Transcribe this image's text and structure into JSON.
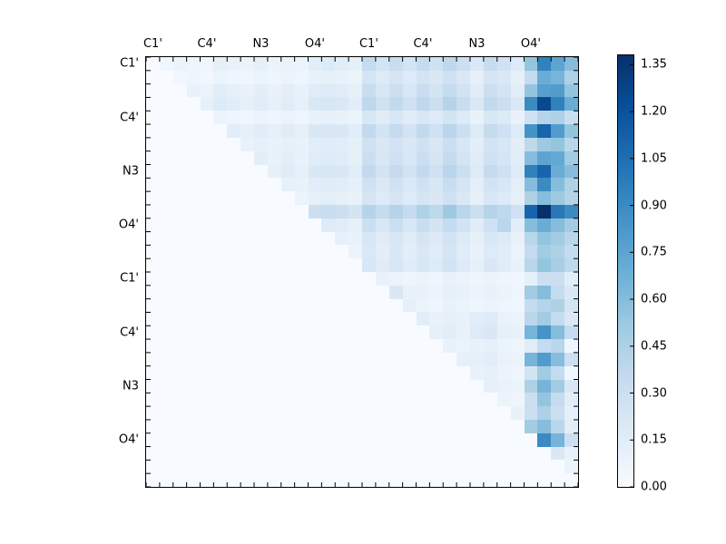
{
  "figure": {
    "background": "#ffffff",
    "axis_color": "#000000"
  },
  "chart_data": {
    "type": "heatmap",
    "title": "",
    "xlabel": "",
    "ylabel": "",
    "n": 32,
    "label_every": 4,
    "x_tick_labels": [
      "C1'",
      "C4'",
      "N3",
      "O4'",
      "C1'",
      "C4'",
      "N3",
      "O4'"
    ],
    "y_tick_labels": [
      "C1'",
      "C4'",
      "N3",
      "O4'",
      "C1'",
      "C4'",
      "N3",
      "O4'"
    ],
    "vmin": 0.0,
    "vmax": 1.38,
    "colormap": "Blues",
    "colormap_stops": [
      {
        "t": 0.0,
        "c": "#f7fbff"
      },
      {
        "t": 0.125,
        "c": "#deebf7"
      },
      {
        "t": 0.25,
        "c": "#c6dbef"
      },
      {
        "t": 0.375,
        "c": "#9ecae1"
      },
      {
        "t": 0.5,
        "c": "#6baed6"
      },
      {
        "t": 0.625,
        "c": "#4292c6"
      },
      {
        "t": 0.75,
        "c": "#2171b5"
      },
      {
        "t": 0.875,
        "c": "#08519c"
      },
      {
        "t": 1.0,
        "c": "#08306b"
      }
    ],
    "colorbar_ticks": [
      {
        "value": 0.0,
        "label": "0.00"
      },
      {
        "value": 0.15,
        "label": "0.15"
      },
      {
        "value": 0.3,
        "label": "0.30"
      },
      {
        "value": 0.45,
        "label": "0.45"
      },
      {
        "value": 0.6,
        "label": "0.60"
      },
      {
        "value": 0.75,
        "label": "0.75"
      },
      {
        "value": 0.9,
        "label": "0.90"
      },
      {
        "value": 1.05,
        "label": "1.05"
      },
      {
        "value": 1.2,
        "label": "1.20"
      },
      {
        "value": 1.35,
        "label": "1.35"
      }
    ],
    "matrix": [
      [
        0.0,
        0.05,
        0.08,
        0.06,
        0.05,
        0.12,
        0.1,
        0.08,
        0.12,
        0.08,
        0.1,
        0.08,
        0.15,
        0.18,
        0.15,
        0.12,
        0.35,
        0.25,
        0.32,
        0.25,
        0.35,
        0.28,
        0.38,
        0.3,
        0.2,
        0.33,
        0.28,
        0.18,
        0.55,
        0.95,
        0.75,
        0.6
      ],
      [
        0.0,
        0.0,
        0.04,
        0.06,
        0.04,
        0.08,
        0.06,
        0.05,
        0.08,
        0.06,
        0.08,
        0.06,
        0.1,
        0.12,
        0.1,
        0.08,
        0.25,
        0.18,
        0.24,
        0.18,
        0.25,
        0.2,
        0.28,
        0.2,
        0.12,
        0.24,
        0.2,
        0.12,
        0.35,
        0.7,
        0.65,
        0.45
      ],
      [
        0.0,
        0.0,
        0.0,
        0.1,
        0.08,
        0.15,
        0.12,
        0.1,
        0.14,
        0.1,
        0.14,
        0.1,
        0.16,
        0.18,
        0.16,
        0.12,
        0.32,
        0.22,
        0.3,
        0.22,
        0.32,
        0.25,
        0.35,
        0.26,
        0.16,
        0.3,
        0.25,
        0.15,
        0.55,
        0.78,
        0.8,
        0.55
      ],
      [
        0.0,
        0.0,
        0.0,
        0.0,
        0.12,
        0.18,
        0.15,
        0.12,
        0.16,
        0.12,
        0.16,
        0.12,
        0.2,
        0.22,
        0.2,
        0.15,
        0.38,
        0.28,
        0.36,
        0.28,
        0.38,
        0.3,
        0.42,
        0.32,
        0.2,
        0.36,
        0.3,
        0.2,
        0.9,
        1.25,
        0.95,
        0.7
      ],
      [
        0.0,
        0.0,
        0.0,
        0.0,
        0.0,
        0.08,
        0.06,
        0.05,
        0.08,
        0.06,
        0.08,
        0.06,
        0.1,
        0.12,
        0.1,
        0.08,
        0.22,
        0.16,
        0.22,
        0.16,
        0.22,
        0.18,
        0.25,
        0.18,
        0.1,
        0.22,
        0.18,
        0.1,
        0.28,
        0.42,
        0.45,
        0.3
      ],
      [
        0.0,
        0.0,
        0.0,
        0.0,
        0.0,
        0.0,
        0.15,
        0.12,
        0.16,
        0.12,
        0.16,
        0.12,
        0.2,
        0.22,
        0.2,
        0.15,
        0.36,
        0.26,
        0.34,
        0.26,
        0.36,
        0.28,
        0.4,
        0.3,
        0.18,
        0.34,
        0.28,
        0.18,
        0.85,
        1.1,
        0.8,
        0.55
      ],
      [
        0.0,
        0.0,
        0.0,
        0.0,
        0.0,
        0.0,
        0.0,
        0.1,
        0.12,
        0.1,
        0.12,
        0.1,
        0.15,
        0.16,
        0.15,
        0.12,
        0.28,
        0.2,
        0.26,
        0.2,
        0.28,
        0.22,
        0.3,
        0.22,
        0.14,
        0.26,
        0.22,
        0.14,
        0.38,
        0.52,
        0.55,
        0.4
      ],
      [
        0.0,
        0.0,
        0.0,
        0.0,
        0.0,
        0.0,
        0.0,
        0.0,
        0.14,
        0.1,
        0.14,
        0.1,
        0.16,
        0.18,
        0.16,
        0.12,
        0.3,
        0.22,
        0.28,
        0.22,
        0.3,
        0.24,
        0.34,
        0.25,
        0.16,
        0.28,
        0.24,
        0.15,
        0.6,
        0.75,
        0.72,
        0.5
      ],
      [
        0.0,
        0.0,
        0.0,
        0.0,
        0.0,
        0.0,
        0.0,
        0.0,
        0.0,
        0.12,
        0.16,
        0.12,
        0.2,
        0.22,
        0.2,
        0.15,
        0.36,
        0.26,
        0.34,
        0.26,
        0.36,
        0.28,
        0.4,
        0.3,
        0.18,
        0.34,
        0.28,
        0.18,
        0.95,
        1.1,
        0.7,
        0.6
      ],
      [
        0.0,
        0.0,
        0.0,
        0.0,
        0.0,
        0.0,
        0.0,
        0.0,
        0.0,
        0.0,
        0.12,
        0.1,
        0.15,
        0.16,
        0.15,
        0.12,
        0.28,
        0.2,
        0.28,
        0.2,
        0.28,
        0.22,
        0.32,
        0.24,
        0.14,
        0.26,
        0.22,
        0.14,
        0.6,
        0.9,
        0.6,
        0.45
      ],
      [
        0.0,
        0.0,
        0.0,
        0.0,
        0.0,
        0.0,
        0.0,
        0.0,
        0.0,
        0.0,
        0.0,
        0.08,
        0.12,
        0.14,
        0.12,
        0.1,
        0.24,
        0.18,
        0.24,
        0.18,
        0.24,
        0.2,
        0.28,
        0.2,
        0.12,
        0.22,
        0.18,
        0.12,
        0.45,
        0.6,
        0.52,
        0.42
      ],
      [
        0.0,
        0.0,
        0.0,
        0.0,
        0.0,
        0.0,
        0.0,
        0.0,
        0.0,
        0.0,
        0.0,
        0.0,
        0.3,
        0.32,
        0.3,
        0.25,
        0.42,
        0.35,
        0.42,
        0.35,
        0.45,
        0.38,
        0.52,
        0.4,
        0.3,
        0.42,
        0.38,
        0.28,
        1.1,
        1.38,
        1.0,
        0.9
      ],
      [
        0.0,
        0.0,
        0.0,
        0.0,
        0.0,
        0.0,
        0.0,
        0.0,
        0.0,
        0.0,
        0.0,
        0.0,
        0.0,
        0.18,
        0.16,
        0.12,
        0.3,
        0.22,
        0.3,
        0.22,
        0.32,
        0.25,
        0.35,
        0.26,
        0.16,
        0.28,
        0.4,
        0.15,
        0.6,
        0.7,
        0.6,
        0.5
      ],
      [
        0.0,
        0.0,
        0.0,
        0.0,
        0.0,
        0.0,
        0.0,
        0.0,
        0.0,
        0.0,
        0.0,
        0.0,
        0.0,
        0.0,
        0.12,
        0.1,
        0.22,
        0.16,
        0.22,
        0.16,
        0.24,
        0.18,
        0.26,
        0.18,
        0.12,
        0.2,
        0.18,
        0.1,
        0.4,
        0.55,
        0.5,
        0.4
      ],
      [
        0.0,
        0.0,
        0.0,
        0.0,
        0.0,
        0.0,
        0.0,
        0.0,
        0.0,
        0.0,
        0.0,
        0.0,
        0.0,
        0.0,
        0.0,
        0.08,
        0.2,
        0.14,
        0.2,
        0.14,
        0.2,
        0.16,
        0.24,
        0.16,
        0.1,
        0.18,
        0.15,
        0.08,
        0.35,
        0.5,
        0.45,
        0.35
      ],
      [
        0.0,
        0.0,
        0.0,
        0.0,
        0.0,
        0.0,
        0.0,
        0.0,
        0.0,
        0.0,
        0.0,
        0.0,
        0.0,
        0.0,
        0.0,
        0.0,
        0.22,
        0.16,
        0.22,
        0.16,
        0.22,
        0.18,
        0.26,
        0.18,
        0.12,
        0.2,
        0.16,
        0.1,
        0.4,
        0.55,
        0.48,
        0.38
      ],
      [
        0.0,
        0.0,
        0.0,
        0.0,
        0.0,
        0.0,
        0.0,
        0.0,
        0.0,
        0.0,
        0.0,
        0.0,
        0.0,
        0.0,
        0.0,
        0.0,
        0.0,
        0.1,
        0.08,
        0.06,
        0.08,
        0.06,
        0.1,
        0.08,
        0.06,
        0.08,
        0.06,
        0.05,
        0.12,
        0.3,
        0.3,
        0.15
      ],
      [
        0.0,
        0.0,
        0.0,
        0.0,
        0.0,
        0.0,
        0.0,
        0.0,
        0.0,
        0.0,
        0.0,
        0.0,
        0.0,
        0.0,
        0.0,
        0.0,
        0.0,
        0.0,
        0.2,
        0.1,
        0.1,
        0.08,
        0.12,
        0.1,
        0.08,
        0.1,
        0.08,
        0.06,
        0.5,
        0.6,
        0.35,
        0.2
      ],
      [
        0.0,
        0.0,
        0.0,
        0.0,
        0.0,
        0.0,
        0.0,
        0.0,
        0.0,
        0.0,
        0.0,
        0.0,
        0.0,
        0.0,
        0.0,
        0.0,
        0.0,
        0.0,
        0.0,
        0.12,
        0.08,
        0.06,
        0.1,
        0.08,
        0.06,
        0.08,
        0.06,
        0.05,
        0.35,
        0.42,
        0.45,
        0.25
      ],
      [
        0.0,
        0.0,
        0.0,
        0.0,
        0.0,
        0.0,
        0.0,
        0.0,
        0.0,
        0.0,
        0.0,
        0.0,
        0.0,
        0.0,
        0.0,
        0.0,
        0.0,
        0.0,
        0.0,
        0.0,
        0.15,
        0.1,
        0.12,
        0.1,
        0.15,
        0.18,
        0.1,
        0.08,
        0.4,
        0.5,
        0.35,
        0.2
      ],
      [
        0.0,
        0.0,
        0.0,
        0.0,
        0.0,
        0.0,
        0.0,
        0.0,
        0.0,
        0.0,
        0.0,
        0.0,
        0.0,
        0.0,
        0.0,
        0.0,
        0.0,
        0.0,
        0.0,
        0.0,
        0.0,
        0.12,
        0.15,
        0.1,
        0.18,
        0.2,
        0.12,
        0.1,
        0.65,
        0.85,
        0.6,
        0.35
      ],
      [
        0.0,
        0.0,
        0.0,
        0.0,
        0.0,
        0.0,
        0.0,
        0.0,
        0.0,
        0.0,
        0.0,
        0.0,
        0.0,
        0.0,
        0.0,
        0.0,
        0.0,
        0.0,
        0.0,
        0.0,
        0.0,
        0.0,
        0.1,
        0.08,
        0.1,
        0.12,
        0.08,
        0.06,
        0.15,
        0.35,
        0.4,
        0.05
      ],
      [
        0.0,
        0.0,
        0.0,
        0.0,
        0.0,
        0.0,
        0.0,
        0.0,
        0.0,
        0.0,
        0.0,
        0.0,
        0.0,
        0.0,
        0.0,
        0.0,
        0.0,
        0.0,
        0.0,
        0.0,
        0.0,
        0.0,
        0.0,
        0.12,
        0.12,
        0.15,
        0.1,
        0.08,
        0.65,
        0.8,
        0.6,
        0.3
      ],
      [
        0.0,
        0.0,
        0.0,
        0.0,
        0.0,
        0.0,
        0.0,
        0.0,
        0.0,
        0.0,
        0.0,
        0.0,
        0.0,
        0.0,
        0.0,
        0.0,
        0.0,
        0.0,
        0.0,
        0.0,
        0.0,
        0.0,
        0.0,
        0.0,
        0.1,
        0.12,
        0.08,
        0.06,
        0.25,
        0.5,
        0.35,
        0.05
      ],
      [
        0.0,
        0.0,
        0.0,
        0.0,
        0.0,
        0.0,
        0.0,
        0.0,
        0.0,
        0.0,
        0.0,
        0.0,
        0.0,
        0.0,
        0.0,
        0.0,
        0.0,
        0.0,
        0.0,
        0.0,
        0.0,
        0.0,
        0.0,
        0.0,
        0.0,
        0.12,
        0.1,
        0.08,
        0.45,
        0.65,
        0.5,
        0.2
      ],
      [
        0.0,
        0.0,
        0.0,
        0.0,
        0.0,
        0.0,
        0.0,
        0.0,
        0.0,
        0.0,
        0.0,
        0.0,
        0.0,
        0.0,
        0.0,
        0.0,
        0.0,
        0.0,
        0.0,
        0.0,
        0.0,
        0.0,
        0.0,
        0.0,
        0.0,
        0.0,
        0.08,
        0.06,
        0.3,
        0.55,
        0.35,
        0.15
      ],
      [
        0.0,
        0.0,
        0.0,
        0.0,
        0.0,
        0.0,
        0.0,
        0.0,
        0.0,
        0.0,
        0.0,
        0.0,
        0.0,
        0.0,
        0.0,
        0.0,
        0.0,
        0.0,
        0.0,
        0.0,
        0.0,
        0.0,
        0.0,
        0.0,
        0.0,
        0.0,
        0.0,
        0.1,
        0.3,
        0.45,
        0.3,
        0.12
      ],
      [
        0.0,
        0.0,
        0.0,
        0.0,
        0.0,
        0.0,
        0.0,
        0.0,
        0.0,
        0.0,
        0.0,
        0.0,
        0.0,
        0.0,
        0.0,
        0.0,
        0.0,
        0.0,
        0.0,
        0.0,
        0.0,
        0.0,
        0.0,
        0.0,
        0.0,
        0.0,
        0.0,
        0.0,
        0.5,
        0.6,
        0.4,
        0.15
      ],
      [
        0.0,
        0.0,
        0.0,
        0.0,
        0.0,
        0.0,
        0.0,
        0.0,
        0.0,
        0.0,
        0.0,
        0.0,
        0.0,
        0.0,
        0.0,
        0.0,
        0.0,
        0.0,
        0.0,
        0.0,
        0.0,
        0.0,
        0.0,
        0.0,
        0.0,
        0.0,
        0.0,
        0.0,
        0.0,
        0.9,
        0.65,
        0.3
      ],
      [
        0.0,
        0.0,
        0.0,
        0.0,
        0.0,
        0.0,
        0.0,
        0.0,
        0.0,
        0.0,
        0.0,
        0.0,
        0.0,
        0.0,
        0.0,
        0.0,
        0.0,
        0.0,
        0.0,
        0.0,
        0.0,
        0.0,
        0.0,
        0.0,
        0.0,
        0.0,
        0.0,
        0.0,
        0.0,
        0.0,
        0.2,
        0.1
      ],
      [
        0.0,
        0.0,
        0.0,
        0.0,
        0.0,
        0.0,
        0.0,
        0.0,
        0.0,
        0.0,
        0.0,
        0.0,
        0.0,
        0.0,
        0.0,
        0.0,
        0.0,
        0.0,
        0.0,
        0.0,
        0.0,
        0.0,
        0.0,
        0.0,
        0.0,
        0.0,
        0.0,
        0.0,
        0.0,
        0.0,
        0.0,
        0.08
      ],
      [
        0.0,
        0.0,
        0.0,
        0.0,
        0.0,
        0.0,
        0.0,
        0.0,
        0.0,
        0.0,
        0.0,
        0.0,
        0.0,
        0.0,
        0.0,
        0.0,
        0.0,
        0.0,
        0.0,
        0.0,
        0.0,
        0.0,
        0.0,
        0.0,
        0.0,
        0.0,
        0.0,
        0.0,
        0.0,
        0.0,
        0.0,
        0.0
      ]
    ]
  }
}
